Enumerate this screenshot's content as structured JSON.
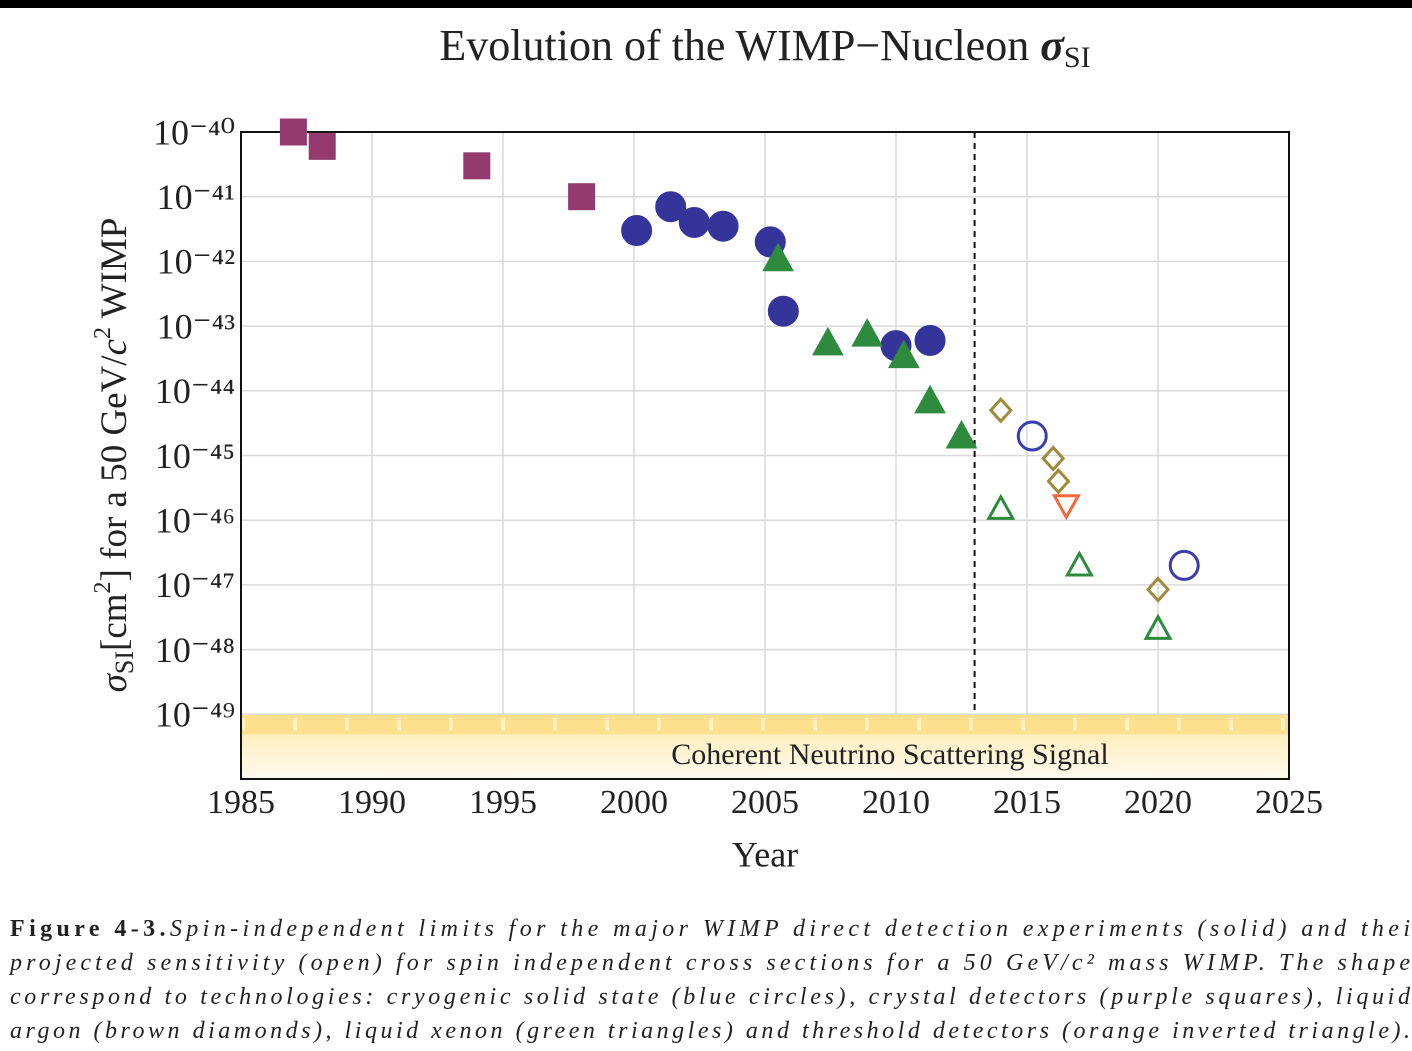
{
  "chart_data": {
    "type": "scatter",
    "title": {
      "text": "Evolution of the WIMP−Nucleon ",
      "symbol": "σ",
      "subscript": "SI"
    },
    "ylabel_parts": [
      {
        "text": "σ",
        "style": "italic"
      },
      {
        "text": "SI",
        "style": "sub"
      },
      {
        "text": "[cm",
        "style": "normal"
      },
      {
        "text": "2",
        "style": "sup"
      },
      {
        "text": "] for a 50 GeV/",
        "style": "normal"
      },
      {
        "text": "c",
        "style": "italic"
      },
      {
        "text": "2",
        "style": "sup"
      },
      {
        "text": " WIMP",
        "style": "normal"
      }
    ],
    "xlabel": "Year",
    "xlim": [
      1985,
      2025
    ],
    "xticks": [
      1985,
      1990,
      1995,
      2000,
      2005,
      2010,
      2015,
      2020,
      2025
    ],
    "ylim": [
      1e-50,
      1e-40
    ],
    "log_y": true,
    "grid": true,
    "yticks": [
      {
        "value": 1e-40,
        "label": "10⁻⁴⁰"
      },
      {
        "value": 1e-41,
        "label": "10⁻⁴¹"
      },
      {
        "value": 1e-42,
        "label": "10⁻⁴²"
      },
      {
        "value": 1e-43,
        "label": "10⁻⁴³"
      },
      {
        "value": 1e-44,
        "label": "10⁻⁴⁴"
      },
      {
        "value": 1e-45,
        "label": "10⁻⁴⁵"
      },
      {
        "value": 1e-46,
        "label": "10⁻⁴⁶"
      },
      {
        "value": 1e-47,
        "label": "10⁻⁴⁷"
      },
      {
        "value": 1e-48,
        "label": "10⁻⁴⁸"
      },
      {
        "value": 1e-49,
        "label": "10⁻⁴⁹"
      }
    ],
    "series": [
      {
        "marker": "square",
        "filled": true,
        "color": "#953a6e",
        "x": [
          1987.0,
          1988.1,
          1994.0,
          1998.0
        ],
        "values": [
          1e-40,
          6e-41,
          3e-41,
          1e-41
        ]
      },
      {
        "marker": "circle",
        "filled": true,
        "color": "#34349a",
        "x": [
          2000.1,
          2001.4,
          2002.3,
          2003.4,
          2005.2,
          2005.7,
          2010.0,
          2011.3
        ],
        "values": [
          3e-42,
          7e-42,
          4e-42,
          3.5e-42,
          2e-42,
          1.7e-43,
          5e-44,
          6e-44
        ]
      },
      {
        "marker": "triangle",
        "filled": true,
        "color": "#2e8b3e",
        "x": [
          2005.5,
          2007.4,
          2008.9,
          2010.3,
          2011.3,
          2012.5
        ],
        "values": [
          1.1e-42,
          5.5e-44,
          7.5e-44,
          3.5e-44,
          7e-45,
          2e-45
        ]
      },
      {
        "marker": "diamond",
        "filled": false,
        "color": "#a08a3a",
        "x": [
          2014.0,
          2016.0,
          2016.2,
          2020.0
        ],
        "values": [
          5e-45,
          9e-46,
          4e-46,
          8.5e-48
        ]
      },
      {
        "marker": "circle",
        "filled": false,
        "color": "#3b3bb0",
        "x": [
          2015.2,
          2021.0
        ],
        "values": [
          2e-45,
          2e-47
        ]
      },
      {
        "marker": "triangle",
        "filled": false,
        "color": "#2e8b3e",
        "x": [
          2014.0,
          2017.0,
          2020.0
        ],
        "values": [
          1.5e-46,
          2e-47,
          2.1e-48
        ]
      },
      {
        "marker": "triangle-down",
        "filled": false,
        "color": "#f26a3a",
        "x": [
          2016.5
        ],
        "values": [
          1.7e-46
        ]
      }
    ],
    "vline_x": 2013,
    "band": {
      "from": 1e-50,
      "to": 1e-49,
      "label": "Coherent Neutrino Scattering Signal"
    }
  },
  "caption": {
    "label": "Figure 4-3.",
    "lines": [
      "Spin-independent limits for the major WIMP direct detection experiments (solid) and thei",
      "projected sensitivity (open) for spin independent cross sections for a 50 GeV/c² mass WIMP. The shape",
      "correspond to technologies: cryogenic solid state (blue circles), crystal detectors (purple squares), liquid",
      "argon (brown diamonds), liquid xenon (green triangles) and threshold detectors (orange inverted triangle)."
    ]
  }
}
